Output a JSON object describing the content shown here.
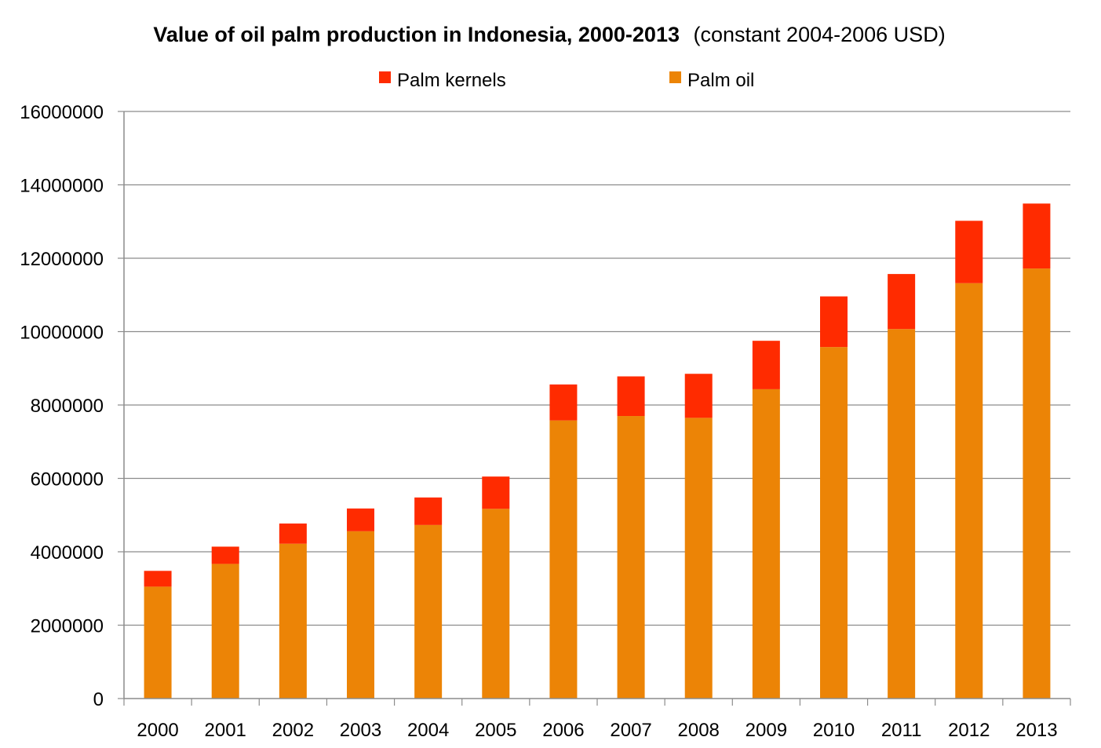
{
  "chart_data": {
    "type": "bar",
    "stacked": true,
    "title": "Value of oil palm production in Indonesia, 2000-2013",
    "subtitle": "(constant 2004-2006 USD)",
    "xlabel": "",
    "ylabel": "",
    "ylim": [
      0,
      16000000
    ],
    "yticks": [
      "0",
      "2000000",
      "4000000",
      "6000000",
      "8000000",
      "10000000",
      "12000000",
      "14000000",
      "16000000"
    ],
    "grid": true,
    "legend_position": "top",
    "categories": [
      "2000",
      "2001",
      "2002",
      "2003",
      "2004",
      "2005",
      "2006",
      "2007",
      "2008",
      "2009",
      "2010",
      "2011",
      "2012",
      "2013"
    ],
    "series": [
      {
        "name": "Palm kernels",
        "color": "#ff2b00",
        "values": [
          430000,
          470000,
          550000,
          620000,
          750000,
          880000,
          980000,
          1080000,
          1200000,
          1320000,
          1380000,
          1500000,
          1700000,
          1770000
        ]
      },
      {
        "name": "Palm oil",
        "color": "#ec8406",
        "values": [
          3050000,
          3670000,
          4220000,
          4560000,
          4730000,
          5170000,
          7580000,
          7700000,
          7650000,
          8430000,
          9580000,
          10070000,
          11320000,
          11720000
        ]
      }
    ]
  }
}
